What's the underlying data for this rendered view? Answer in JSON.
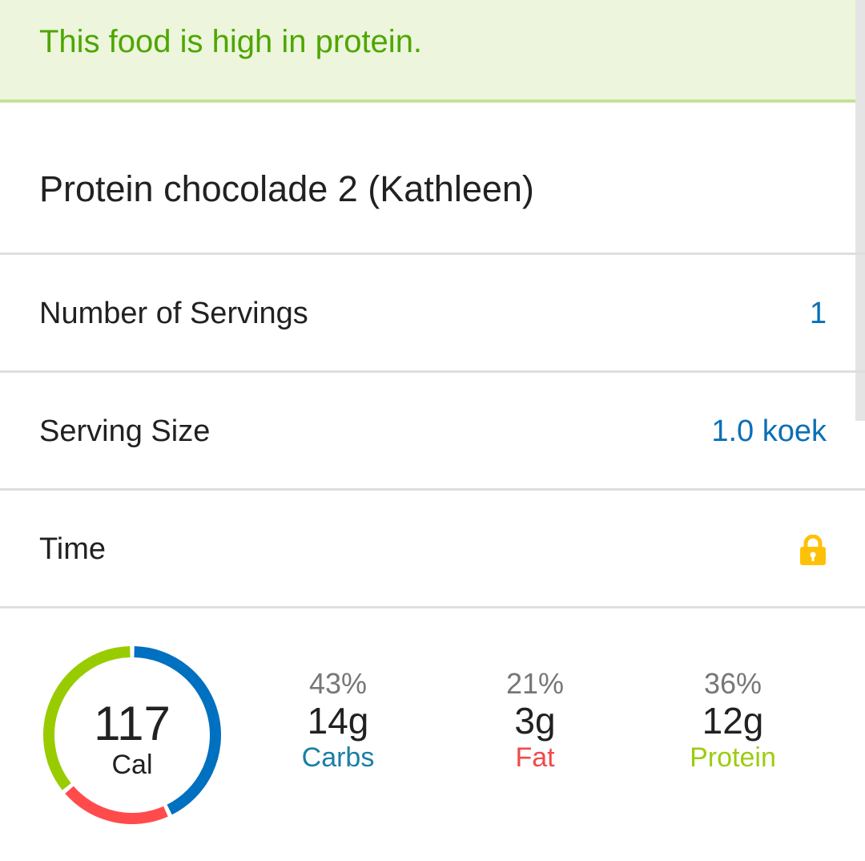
{
  "banner": {
    "text": "This food is high in protein."
  },
  "food": {
    "title": "Protein chocolade 2 (Kathleen)"
  },
  "rows": [
    {
      "label": "Number of Servings",
      "value": "1"
    },
    {
      "label": "Serving Size",
      "value": "1.0 koek"
    },
    {
      "label": "Time",
      "icon": "lock-icon"
    }
  ],
  "calories": {
    "value": "117",
    "unit": "Cal"
  },
  "macros": [
    {
      "pct": "43%",
      "grams": "14g",
      "name": "Carbs",
      "color": "#1a7ea6",
      "ring_color": "#0070c0",
      "fraction": 0.43
    },
    {
      "pct": "21%",
      "grams": "3g",
      "name": "Fat",
      "color": "#f04a4a",
      "ring_color": "#ff4b4b",
      "fraction": 0.21
    },
    {
      "pct": "36%",
      "grams": "12g",
      "name": "Protein",
      "color": "#9ccc10",
      "ring_color": "#99cc00",
      "fraction": 0.36
    }
  ],
  "colors": {
    "accent": "#0b6fb5",
    "lock": "#ffc107",
    "banner_text": "#4ea600"
  }
}
